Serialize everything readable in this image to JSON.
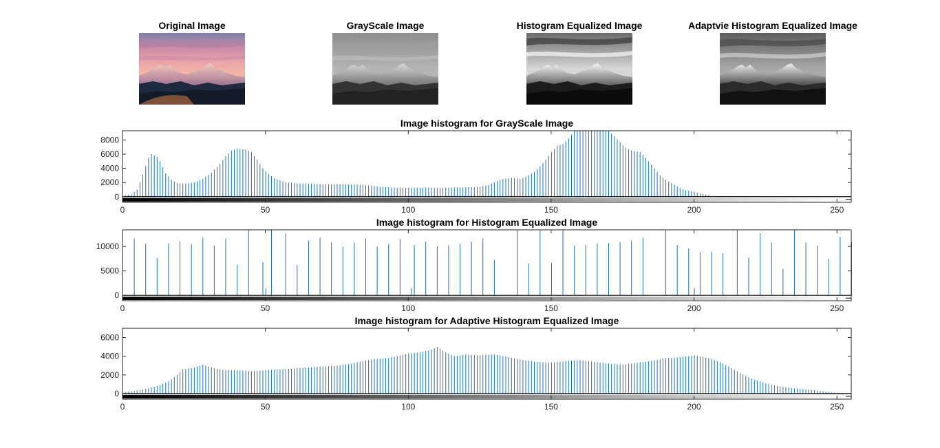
{
  "images": [
    {
      "title": "Original Image",
      "kind": "color"
    },
    {
      "title": "GrayScale Image",
      "kind": "gray"
    },
    {
      "title": "Histogram Equalized Image",
      "kind": "equalized"
    },
    {
      "title": "Adaptvie Histogram Equalized Image",
      "kind": "adaptive"
    }
  ],
  "colors": {
    "stem": "#1f6fb0",
    "axis": "#262626"
  },
  "chart_data": [
    {
      "type": "bar",
      "title": "Image histogram for GrayScale Image",
      "xlim": [
        0,
        255
      ],
      "ylim": [
        -800,
        9300
      ],
      "xticks": [
        0,
        50,
        100,
        150,
        200,
        250
      ],
      "yticks": [
        0,
        2000,
        4000,
        6000,
        8000
      ],
      "anchors": [
        [
          0,
          100
        ],
        [
          3,
          350
        ],
        [
          5,
          1000
        ],
        [
          7,
          3100
        ],
        [
          9,
          5500
        ],
        [
          10,
          6000
        ],
        [
          12,
          5600
        ],
        [
          13,
          5000
        ],
        [
          15,
          3300
        ],
        [
          17,
          2400
        ],
        [
          19,
          1900
        ],
        [
          22,
          1850
        ],
        [
          25,
          2000
        ],
        [
          28,
          2500
        ],
        [
          31,
          3400
        ],
        [
          34,
          4600
        ],
        [
          36,
          5700
        ],
        [
          38,
          6500
        ],
        [
          40,
          6800
        ],
        [
          43,
          6650
        ],
        [
          45,
          6300
        ],
        [
          47,
          5200
        ],
        [
          49,
          4000
        ],
        [
          51,
          3200
        ],
        [
          53,
          2600
        ],
        [
          55,
          2300
        ],
        [
          57,
          2050
        ],
        [
          60,
          1900
        ],
        [
          70,
          1750
        ],
        [
          75,
          1800
        ],
        [
          85,
          1650
        ],
        [
          90,
          1400
        ],
        [
          95,
          1250
        ],
        [
          100,
          1250
        ],
        [
          110,
          1250
        ],
        [
          120,
          1300
        ],
        [
          125,
          1400
        ],
        [
          128,
          1650
        ],
        [
          131,
          2200
        ],
        [
          133,
          2500
        ],
        [
          136,
          2650
        ],
        [
          139,
          2500
        ],
        [
          141,
          2800
        ],
        [
          144,
          3500
        ],
        [
          146,
          4300
        ],
        [
          148,
          5200
        ],
        [
          150,
          6300
        ],
        [
          152,
          7200
        ],
        [
          154,
          7400
        ],
        [
          156,
          8200
        ],
        [
          158,
          9300
        ],
        [
          170,
          9300
        ],
        [
          172,
          8500
        ],
        [
          174,
          7700
        ],
        [
          176,
          6900
        ],
        [
          178,
          6500
        ],
        [
          181,
          6300
        ],
        [
          183,
          5500
        ],
        [
          184,
          5000
        ],
        [
          186,
          4000
        ],
        [
          188,
          3000
        ],
        [
          190,
          2400
        ],
        [
          193,
          1700
        ],
        [
          195,
          1200
        ],
        [
          197,
          900
        ],
        [
          200,
          700
        ],
        [
          203,
          400
        ],
        [
          206,
          100
        ],
        [
          210,
          50
        ],
        [
          215,
          0
        ],
        [
          255,
          0
        ]
      ]
    },
    {
      "type": "bar",
      "title": "Image histogram for Histogram Equalized Image",
      "xlim": [
        0,
        255
      ],
      "ylim": [
        -1100,
        13400
      ],
      "xticks": [
        0,
        50,
        100,
        150,
        200,
        250
      ],
      "yticks": [
        0,
        5000,
        10000
      ],
      "bins": [
        [
          0,
          0
        ],
        [
          4,
          11600
        ],
        [
          8,
          10600
        ],
        [
          12,
          7600
        ],
        [
          16,
          10600
        ],
        [
          20,
          11000
        ],
        [
          24,
          10500
        ],
        [
          28,
          11800
        ],
        [
          32,
          10200
        ],
        [
          36,
          11600
        ],
        [
          40,
          6300
        ],
        [
          44,
          13400
        ],
        [
          49,
          6800
        ],
        [
          50,
          1400
        ],
        [
          52,
          13400
        ],
        [
          57,
          12700
        ],
        [
          61,
          6200
        ],
        [
          65,
          11200
        ],
        [
          69,
          11800
        ],
        [
          73,
          10800
        ],
        [
          77,
          10000
        ],
        [
          81,
          10800
        ],
        [
          85,
          11600
        ],
        [
          89,
          10000
        ],
        [
          93,
          10500
        ],
        [
          97,
          11500
        ],
        [
          101,
          1500
        ],
        [
          102,
          10300
        ],
        [
          106,
          11000
        ],
        [
          110,
          10000
        ],
        [
          114,
          10200
        ],
        [
          118,
          10600
        ],
        [
          122,
          11000
        ],
        [
          126,
          11600
        ],
        [
          130,
          7300
        ],
        [
          138,
          13400
        ],
        [
          142,
          6500
        ],
        [
          146,
          13400
        ],
        [
          150,
          6600
        ],
        [
          154,
          13400
        ],
        [
          158,
          10200
        ],
        [
          162,
          10300
        ],
        [
          166,
          10600
        ],
        [
          170,
          10700
        ],
        [
          174,
          10900
        ],
        [
          178,
          11200
        ],
        [
          182,
          11800
        ],
        [
          190,
          13400
        ],
        [
          194,
          10300
        ],
        [
          198,
          9600
        ],
        [
          200,
          1500
        ],
        [
          202,
          8800
        ],
        [
          206,
          8900
        ],
        [
          210,
          8600
        ],
        [
          215,
          13400
        ],
        [
          219,
          7700
        ],
        [
          223,
          12700
        ],
        [
          227,
          10800
        ],
        [
          231,
          5400
        ],
        [
          235,
          13400
        ],
        [
          239,
          10800
        ],
        [
          243,
          10200
        ],
        [
          247,
          7500
        ],
        [
          251,
          12000
        ],
        [
          255,
          10900
        ]
      ]
    },
    {
      "type": "bar",
      "title": "Image histogram for Adaptive Histogram Equalized Image",
      "xlim": [
        0,
        255
      ],
      "ylim": [
        -600,
        7000
      ],
      "xticks": [
        0,
        50,
        100,
        150,
        200,
        250
      ],
      "yticks": [
        0,
        2000,
        4000,
        6000
      ],
      "anchors": [
        [
          0,
          100
        ],
        [
          4,
          300
        ],
        [
          8,
          500
        ],
        [
          12,
          800
        ],
        [
          16,
          1300
        ],
        [
          19,
          2000
        ],
        [
          21,
          2600
        ],
        [
          25,
          2800
        ],
        [
          28,
          3100
        ],
        [
          32,
          2700
        ],
        [
          36,
          2500
        ],
        [
          40,
          2500
        ],
        [
          45,
          2400
        ],
        [
          50,
          2500
        ],
        [
          55,
          2600
        ],
        [
          60,
          2700
        ],
        [
          65,
          2800
        ],
        [
          70,
          2900
        ],
        [
          75,
          3000
        ],
        [
          80,
          3200
        ],
        [
          84,
          3500
        ],
        [
          88,
          3700
        ],
        [
          92,
          3800
        ],
        [
          96,
          4000
        ],
        [
          100,
          4300
        ],
        [
          104,
          4400
        ],
        [
          108,
          4700
        ],
        [
          110,
          5000
        ],
        [
          113,
          4400
        ],
        [
          116,
          4000
        ],
        [
          120,
          4200
        ],
        [
          125,
          4100
        ],
        [
          130,
          4200
        ],
        [
          135,
          3900
        ],
        [
          140,
          3600
        ],
        [
          145,
          3400
        ],
        [
          150,
          3300
        ],
        [
          155,
          3500
        ],
        [
          160,
          3600
        ],
        [
          165,
          3400
        ],
        [
          170,
          3200
        ],
        [
          175,
          3100
        ],
        [
          180,
          3300
        ],
        [
          185,
          3500
        ],
        [
          190,
          3800
        ],
        [
          195,
          3900
        ],
        [
          200,
          4100
        ],
        [
          205,
          3800
        ],
        [
          208,
          3500
        ],
        [
          212,
          2900
        ],
        [
          216,
          2200
        ],
        [
          220,
          1600
        ],
        [
          225,
          1100
        ],
        [
          230,
          750
        ],
        [
          235,
          550
        ],
        [
          240,
          420
        ],
        [
          245,
          250
        ],
        [
          248,
          120
        ],
        [
          252,
          50
        ],
        [
          255,
          0
        ]
      ]
    }
  ]
}
